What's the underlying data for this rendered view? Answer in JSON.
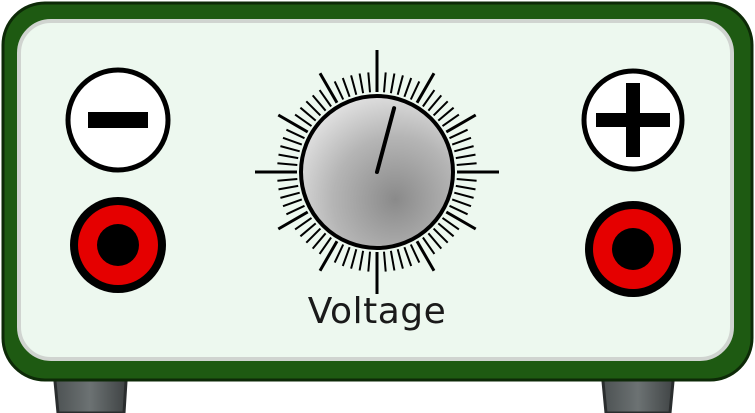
{
  "device": {
    "name": "power-supply",
    "control_label": "Voltage",
    "knob_level": 0.55,
    "colors": {
      "casing": "#1e5a12",
      "panel": "#edf8ef",
      "terminal_red": "#e50000",
      "ink": "#000000"
    }
  },
  "terminals": {
    "negative": {
      "symbol_icon": "minus-icon"
    },
    "positive": {
      "symbol_icon": "plus-icon"
    }
  }
}
